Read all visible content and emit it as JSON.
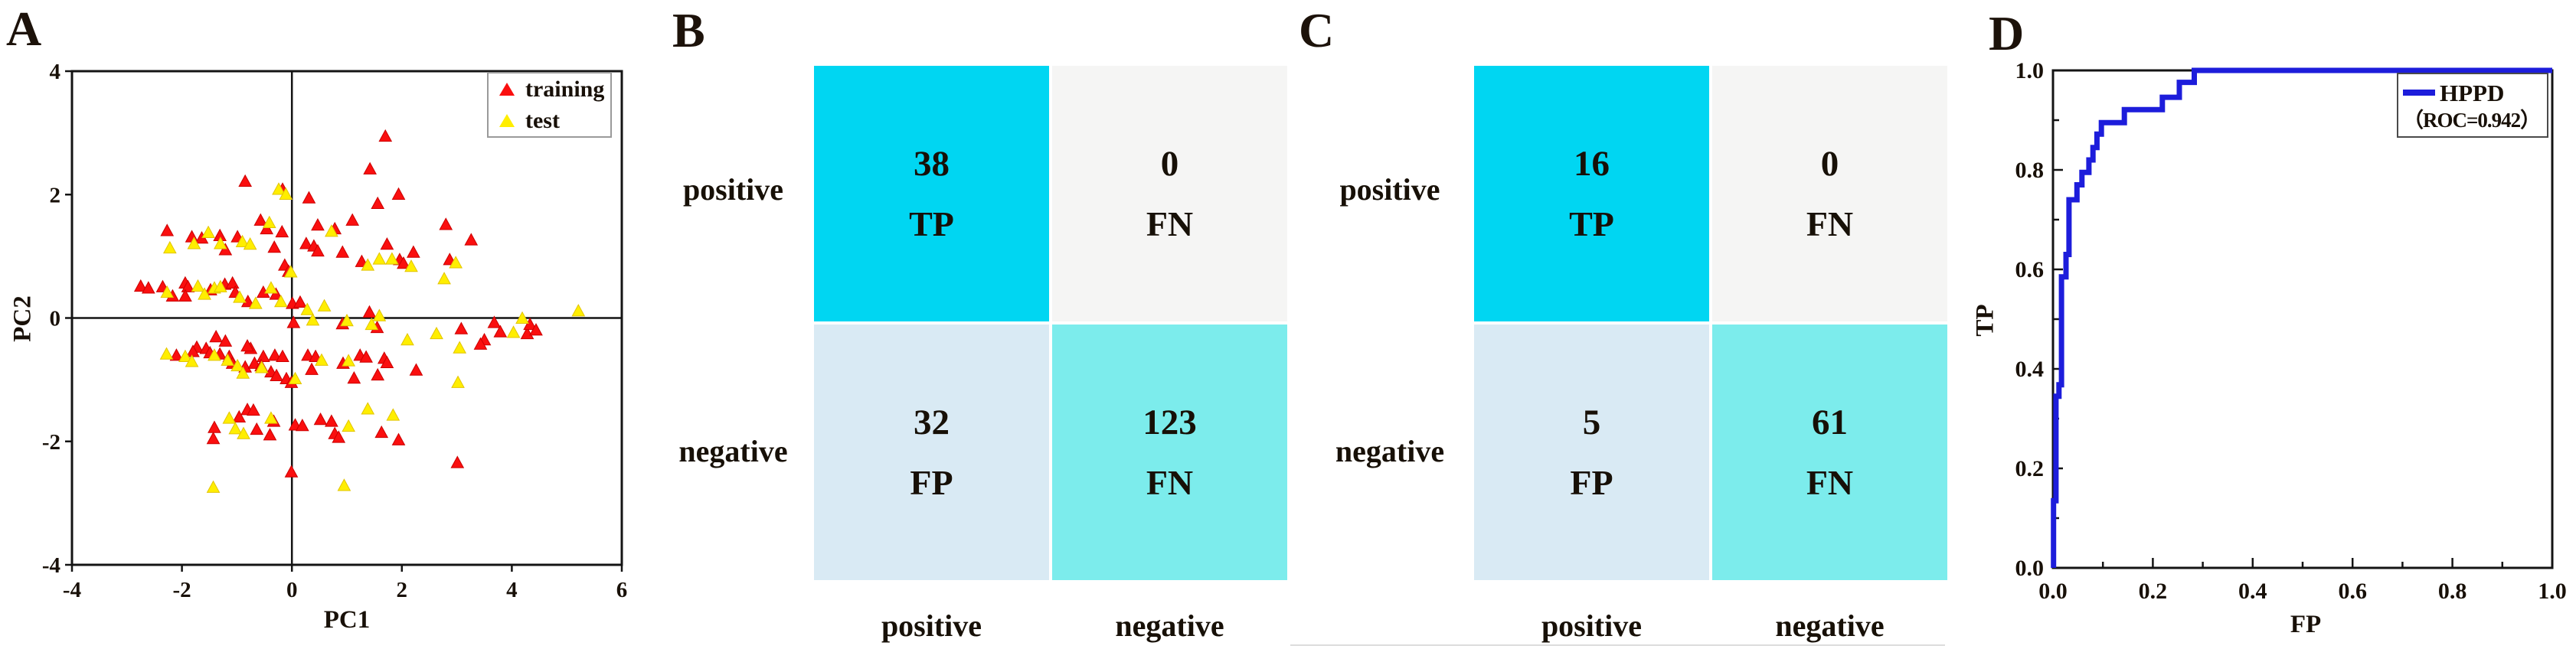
{
  "panels": {
    "a": {
      "label": "A",
      "xlabel": "PC1",
      "ylabel": "PC2",
      "xtick_labels": [
        "-4",
        "-2",
        "0",
        "2",
        "4",
        "6"
      ],
      "ytick_labels": [
        "4",
        "2",
        "0",
        "-2",
        "-4"
      ],
      "legend": {
        "training_label": "training",
        "test_label": "test"
      }
    },
    "b": {
      "label": "B",
      "row_labels": [
        "positive",
        "negative"
      ],
      "col_labels": [
        "positive",
        "negative"
      ]
    },
    "c": {
      "label": "C",
      "row_labels": [
        "positive",
        "negative"
      ],
      "col_labels": [
        "positive",
        "negative"
      ]
    },
    "d": {
      "label": "D",
      "xlabel": "FP",
      "ylabel": "TP",
      "xtick_labels": [
        "0.0",
        "0.2",
        "0.4",
        "0.6",
        "0.8",
        "1.0"
      ],
      "ytick_labels": [
        "0.0",
        "0.2",
        "0.4",
        "0.6",
        "0.8",
        "1.0"
      ],
      "legend_line1": "HPPD",
      "legend_line2": "（ROC=0.942）"
    }
  },
  "colors": {
    "training": "#fa0f0f",
    "training_edge": "#cc0000",
    "test": "#ffee00",
    "test_edge": "#e2c400",
    "roc_line": "#1d1ddb",
    "axis": "#141414",
    "cell_tp": "#00d6f2",
    "cell_fn_top": "#f5f5f4",
    "cell_fp": "#d9eaf4",
    "cell_tn": "#7cecec"
  },
  "chart_data": [
    {
      "id": "A",
      "type": "scatter",
      "title": "",
      "xlabel": "PC1",
      "ylabel": "PC2",
      "xlim": [
        -4,
        6
      ],
      "ylim": [
        -4,
        4
      ],
      "xticks": [
        -4,
        -2,
        0,
        2,
        4,
        6
      ],
      "yticks": [
        4,
        2,
        0,
        -2,
        -4
      ],
      "grid": false,
      "zero_lines": true,
      "legend_position": "top-right",
      "series": [
        {
          "name": "training",
          "marker": "triangle",
          "color": "#fa0f0f",
          "edge": "#cc0000",
          "points": [
            [
              -0.85,
              2.21
            ],
            [
              -0.17,
              2.08
            ],
            [
              0.31,
              1.94
            ],
            [
              -0.57,
              1.58
            ],
            [
              -0.46,
              1.44
            ],
            [
              -0.18,
              1.39
            ],
            [
              -2.27,
              1.41
            ],
            [
              -1.82,
              1.31
            ],
            [
              -1.64,
              1.29
            ],
            [
              -1.31,
              1.33
            ],
            [
              -0.99,
              1.31
            ],
            [
              -1.21,
              1.1
            ],
            [
              -0.32,
              1.14
            ],
            [
              0.26,
              1.2
            ],
            [
              0.4,
              1.16
            ],
            [
              0.47,
              1.08
            ],
            [
              -0.13,
              0.85
            ],
            [
              -0.06,
              0.75
            ],
            [
              0.78,
              1.44
            ],
            [
              0.47,
              1.5
            ],
            [
              0.92,
              1.06
            ],
            [
              -2.75,
              0.51
            ],
            [
              -2.61,
              0.48
            ],
            [
              -2.35,
              0.5
            ],
            [
              -2.17,
              0.35
            ],
            [
              -1.94,
              0.56
            ],
            [
              -1.89,
              0.5
            ],
            [
              -1.94,
              0.35
            ],
            [
              -1.48,
              0.45
            ],
            [
              -1.22,
              0.54
            ],
            [
              -1.08,
              0.56
            ],
            [
              -1.03,
              0.41
            ],
            [
              -0.8,
              0.26
            ],
            [
              -0.52,
              0.41
            ],
            [
              -0.29,
              0.38
            ],
            [
              0.01,
              0.23
            ],
            [
              0.15,
              0.25
            ],
            [
              1.7,
              2.94
            ],
            [
              1.42,
              2.41
            ],
            [
              1.94,
              2.0
            ],
            [
              1.56,
              1.85
            ],
            [
              1.1,
              1.58
            ],
            [
              1.73,
              1.19
            ],
            [
              2.8,
              1.51
            ],
            [
              2.21,
              1.06
            ],
            [
              3.26,
              1.26
            ],
            [
              1.27,
              0.91
            ],
            [
              1.96,
              0.94
            ],
            [
              2.03,
              0.88
            ],
            [
              2.87,
              0.94
            ],
            [
              0.03,
              -0.08
            ],
            [
              0.92,
              -0.1
            ],
            [
              1.41,
              0.09
            ],
            [
              1.55,
              -0.16
            ],
            [
              -1.38,
              -0.31
            ],
            [
              -1.21,
              -0.38
            ],
            [
              -1.73,
              -0.48
            ],
            [
              -1.56,
              -0.5
            ],
            [
              -1.49,
              -0.57
            ],
            [
              -2.1,
              -0.61
            ],
            [
              -1.8,
              -0.55
            ],
            [
              -1.31,
              -0.59
            ],
            [
              -1.14,
              -0.63
            ],
            [
              -1.08,
              -0.74
            ],
            [
              -0.85,
              -0.8
            ],
            [
              -0.75,
              -0.5
            ],
            [
              -0.81,
              -0.46
            ],
            [
              -0.52,
              -0.63
            ],
            [
              -0.31,
              -0.61
            ],
            [
              -0.17,
              -0.63
            ],
            [
              -0.68,
              -0.74
            ],
            [
              -0.56,
              -0.78
            ],
            [
              -0.38,
              -0.88
            ],
            [
              -0.28,
              -0.94
            ],
            [
              -0.1,
              -0.99
            ],
            [
              -0.01,
              -1.05
            ],
            [
              0.29,
              -0.61
            ],
            [
              0.43,
              -0.63
            ],
            [
              0.36,
              -0.84
            ],
            [
              0.93,
              -0.74
            ],
            [
              1.24,
              -0.61
            ],
            [
              1.35,
              -0.64
            ],
            [
              1.68,
              -0.66
            ],
            [
              1.73,
              -0.73
            ],
            [
              2.26,
              -0.85
            ],
            [
              1.56,
              -0.93
            ],
            [
              1.13,
              -0.98
            ],
            [
              3.08,
              -0.18
            ],
            [
              3.5,
              -0.36
            ],
            [
              3.43,
              -0.43
            ],
            [
              3.68,
              -0.08
            ],
            [
              3.79,
              -0.23
            ],
            [
              4.28,
              -0.26
            ],
            [
              4.33,
              -0.11
            ],
            [
              4.44,
              -0.2
            ],
            [
              -0.81,
              -1.49
            ],
            [
              -0.7,
              -1.5
            ],
            [
              -0.96,
              -1.61
            ],
            [
              -0.33,
              -1.68
            ],
            [
              -1.41,
              -1.78
            ],
            [
              -0.64,
              -1.81
            ],
            [
              -0.4,
              -1.9
            ],
            [
              -1.43,
              -1.96
            ],
            [
              0.06,
              -1.74
            ],
            [
              0.19,
              -1.75
            ],
            [
              0.52,
              -1.65
            ],
            [
              0.72,
              -1.68
            ],
            [
              0.78,
              -1.88
            ],
            [
              0.85,
              -1.94
            ],
            [
              1.63,
              -1.86
            ],
            [
              1.94,
              -1.98
            ],
            [
              3.01,
              -2.35
            ],
            [
              -0.01,
              -2.5
            ]
          ]
        },
        {
          "name": "test",
          "marker": "triangle",
          "color": "#ffee00",
          "edge": "#e2c400",
          "points": [
            [
              -0.24,
              2.08
            ],
            [
              -0.11,
              2.0
            ],
            [
              -0.41,
              1.54
            ],
            [
              -1.78,
              1.2
            ],
            [
              -1.52,
              1.38
            ],
            [
              -1.3,
              1.2
            ],
            [
              -0.9,
              1.23
            ],
            [
              -0.76,
              1.19
            ],
            [
              -2.22,
              1.13
            ],
            [
              0.72,
              1.4
            ],
            [
              -0.02,
              0.74
            ],
            [
              -2.27,
              0.41
            ],
            [
              -1.71,
              0.51
            ],
            [
              -1.59,
              0.38
            ],
            [
              -1.41,
              0.48
            ],
            [
              -1.3,
              0.5
            ],
            [
              -0.95,
              0.33
            ],
            [
              -0.66,
              0.23
            ],
            [
              -0.38,
              0.48
            ],
            [
              -0.2,
              0.26
            ],
            [
              0.59,
              0.19
            ],
            [
              0.28,
              0.13
            ],
            [
              0.38,
              -0.04
            ],
            [
              1.38,
              0.85
            ],
            [
              1.59,
              0.95
            ],
            [
              1.82,
              0.95
            ],
            [
              2.17,
              0.83
            ],
            [
              2.98,
              0.89
            ],
            [
              2.77,
              0.63
            ],
            [
              -2.28,
              -0.59
            ],
            [
              -1.94,
              -0.63
            ],
            [
              -1.82,
              -0.71
            ],
            [
              -1.41,
              -0.61
            ],
            [
              -1.17,
              -0.69
            ],
            [
              -0.99,
              -0.78
            ],
            [
              -0.89,
              -0.9
            ],
            [
              -0.55,
              -0.81
            ],
            [
              0.06,
              -0.99
            ],
            [
              0.54,
              -0.69
            ],
            [
              1.0,
              -0.05
            ],
            [
              1.03,
              -0.7
            ],
            [
              1.45,
              -0.11
            ],
            [
              1.59,
              0.03
            ],
            [
              2.1,
              -0.36
            ],
            [
              2.63,
              -0.26
            ],
            [
              3.05,
              -0.49
            ],
            [
              3.02,
              -1.05
            ],
            [
              4.03,
              -0.24
            ],
            [
              4.19,
              -0.01
            ],
            [
              5.21,
              0.11
            ],
            [
              -1.14,
              -1.63
            ],
            [
              -0.38,
              -1.63
            ],
            [
              -1.03,
              -1.8
            ],
            [
              -0.88,
              -1.88
            ],
            [
              1.38,
              -1.48
            ],
            [
              1.84,
              -1.58
            ],
            [
              1.03,
              -1.76
            ],
            [
              -1.43,
              -2.75
            ],
            [
              0.95,
              -2.72
            ]
          ]
        }
      ]
    },
    {
      "id": "B",
      "type": "table",
      "subtype": "confusion_matrix",
      "row_labels": [
        "positive",
        "negative"
      ],
      "col_labels": [
        "positive",
        "negative"
      ],
      "cells": [
        [
          {
            "value": "38",
            "tag": "TP",
            "bg": "#00d6f2"
          },
          {
            "value": "0",
            "tag": "FN",
            "bg": "#f5f5f4"
          }
        ],
        [
          {
            "value": "32",
            "tag": "FP",
            "bg": "#d9eaf4"
          },
          {
            "value": "123",
            "tag": "FN",
            "bg": "#7cecec"
          }
        ]
      ]
    },
    {
      "id": "C",
      "type": "table",
      "subtype": "confusion_matrix",
      "row_labels": [
        "positive",
        "negative"
      ],
      "col_labels": [
        "positive",
        "negative"
      ],
      "cells": [
        [
          {
            "value": "16",
            "tag": "TP",
            "bg": "#00d6f2"
          },
          {
            "value": "0",
            "tag": "FN",
            "bg": "#f5f5f4"
          }
        ],
        [
          {
            "value": "5",
            "tag": "FP",
            "bg": "#d9eaf4"
          },
          {
            "value": "61",
            "tag": "FN",
            "bg": "#7cecec"
          }
        ]
      ]
    },
    {
      "id": "D",
      "type": "line",
      "title": "",
      "xlabel": "FP",
      "ylabel": "TP",
      "xlim": [
        0,
        1
      ],
      "ylim": [
        0,
        1
      ],
      "xticks": [
        0,
        0.2,
        0.4,
        0.6,
        0.8,
        1.0
      ],
      "yticks": [
        0,
        0.2,
        0.4,
        0.6,
        0.8,
        1.0
      ],
      "minor_tick_step": 0.1,
      "grid": false,
      "legend_position": "top-right",
      "auc": 0.942,
      "series": [
        {
          "name": "HPPD",
          "color": "#1d1ddb",
          "points": [
            [
              0.001,
              0.0
            ],
            [
              0.001,
              0.135
            ],
            [
              0.006,
              0.135
            ],
            [
              0.006,
              0.345
            ],
            [
              0.012,
              0.345
            ],
            [
              0.012,
              0.368
            ],
            [
              0.017,
              0.368
            ],
            [
              0.017,
              0.585
            ],
            [
              0.026,
              0.585
            ],
            [
              0.026,
              0.63
            ],
            [
              0.032,
              0.63
            ],
            [
              0.032,
              0.74
            ],
            [
              0.048,
              0.74
            ],
            [
              0.048,
              0.77
            ],
            [
              0.058,
              0.77
            ],
            [
              0.058,
              0.795
            ],
            [
              0.072,
              0.795
            ],
            [
              0.072,
              0.82
            ],
            [
              0.08,
              0.82
            ],
            [
              0.08,
              0.845
            ],
            [
              0.088,
              0.845
            ],
            [
              0.088,
              0.872
            ],
            [
              0.097,
              0.872
            ],
            [
              0.097,
              0.895
            ],
            [
              0.143,
              0.895
            ],
            [
              0.143,
              0.921
            ],
            [
              0.219,
              0.921
            ],
            [
              0.219,
              0.946
            ],
            [
              0.253,
              0.946
            ],
            [
              0.253,
              0.976
            ],
            [
              0.283,
              0.976
            ],
            [
              0.283,
              1.0
            ],
            [
              1.0,
              1.0
            ]
          ]
        }
      ]
    }
  ]
}
